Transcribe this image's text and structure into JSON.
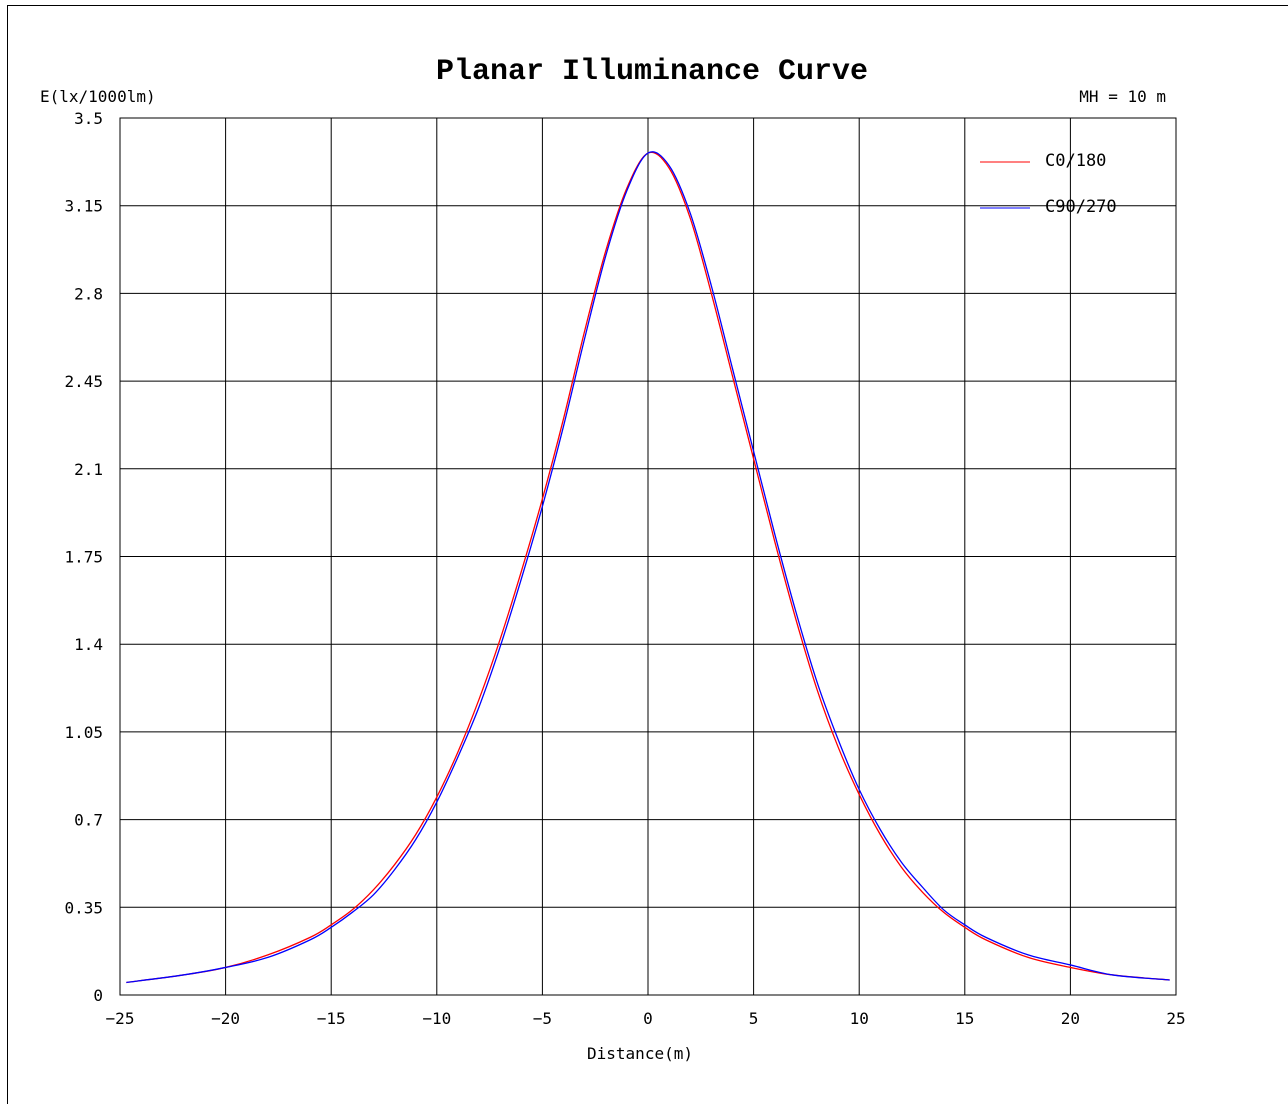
{
  "chart_data": {
    "type": "line",
    "title": "Planar Illuminance Curve",
    "ylabel": "E(lx/1000lm)",
    "xlabel": "Distance(m)",
    "annotation": "MH = 10 m",
    "xlim": [
      -25,
      25
    ],
    "ylim": [
      0,
      3.5
    ],
    "x_ticks": [
      -25,
      -20,
      -15,
      -10,
      -5,
      0,
      5,
      10,
      15,
      20,
      25
    ],
    "y_ticks": [
      0,
      0.35,
      0.7,
      1.05,
      1.4,
      1.75,
      2.1,
      2.45,
      2.8,
      3.15,
      3.5
    ],
    "grid": true,
    "legend_position": "top-right",
    "series": [
      {
        "name": "C0/180",
        "color": "#ff0000",
        "x": [
          -24.7,
          -22,
          -20,
          -18,
          -16,
          -15,
          -14,
          -13,
          -12,
          -11,
          -10,
          -9,
          -8,
          -7,
          -6,
          -5,
          -4,
          -3,
          -2,
          -1,
          0,
          1,
          2,
          3,
          4,
          5,
          6,
          7,
          8,
          9,
          10,
          11,
          12,
          13,
          14,
          15,
          16,
          18,
          20,
          22,
          24.7
        ],
        "y": [
          0.05,
          0.08,
          0.11,
          0.16,
          0.23,
          0.28,
          0.34,
          0.42,
          0.52,
          0.64,
          0.79,
          0.97,
          1.18,
          1.42,
          1.69,
          1.98,
          2.3,
          2.65,
          2.97,
          3.22,
          3.36,
          3.3,
          3.1,
          2.8,
          2.47,
          2.14,
          1.81,
          1.5,
          1.22,
          0.99,
          0.8,
          0.64,
          0.51,
          0.41,
          0.33,
          0.27,
          0.22,
          0.15,
          0.11,
          0.08,
          0.06
        ]
      },
      {
        "name": "C90/270",
        "color": "#0000ff",
        "x": [
          -24.7,
          -22,
          -20,
          -18,
          -16,
          -15,
          -14,
          -13,
          -12,
          -11,
          -10,
          -9,
          -8,
          -7,
          -6,
          -5,
          -4,
          -3,
          -2,
          -1,
          0,
          1,
          2,
          3,
          4,
          5,
          6,
          7,
          8,
          9,
          10,
          11,
          12,
          13,
          14,
          15,
          16,
          18,
          20,
          22,
          24.7
        ],
        "y": [
          0.05,
          0.08,
          0.11,
          0.15,
          0.22,
          0.27,
          0.33,
          0.4,
          0.5,
          0.62,
          0.77,
          0.95,
          1.15,
          1.39,
          1.66,
          1.95,
          2.27,
          2.62,
          2.95,
          3.21,
          3.36,
          3.31,
          3.12,
          2.83,
          2.5,
          2.17,
          1.84,
          1.53,
          1.25,
          1.02,
          0.82,
          0.66,
          0.53,
          0.43,
          0.34,
          0.28,
          0.23,
          0.16,
          0.12,
          0.08,
          0.06
        ]
      }
    ]
  }
}
